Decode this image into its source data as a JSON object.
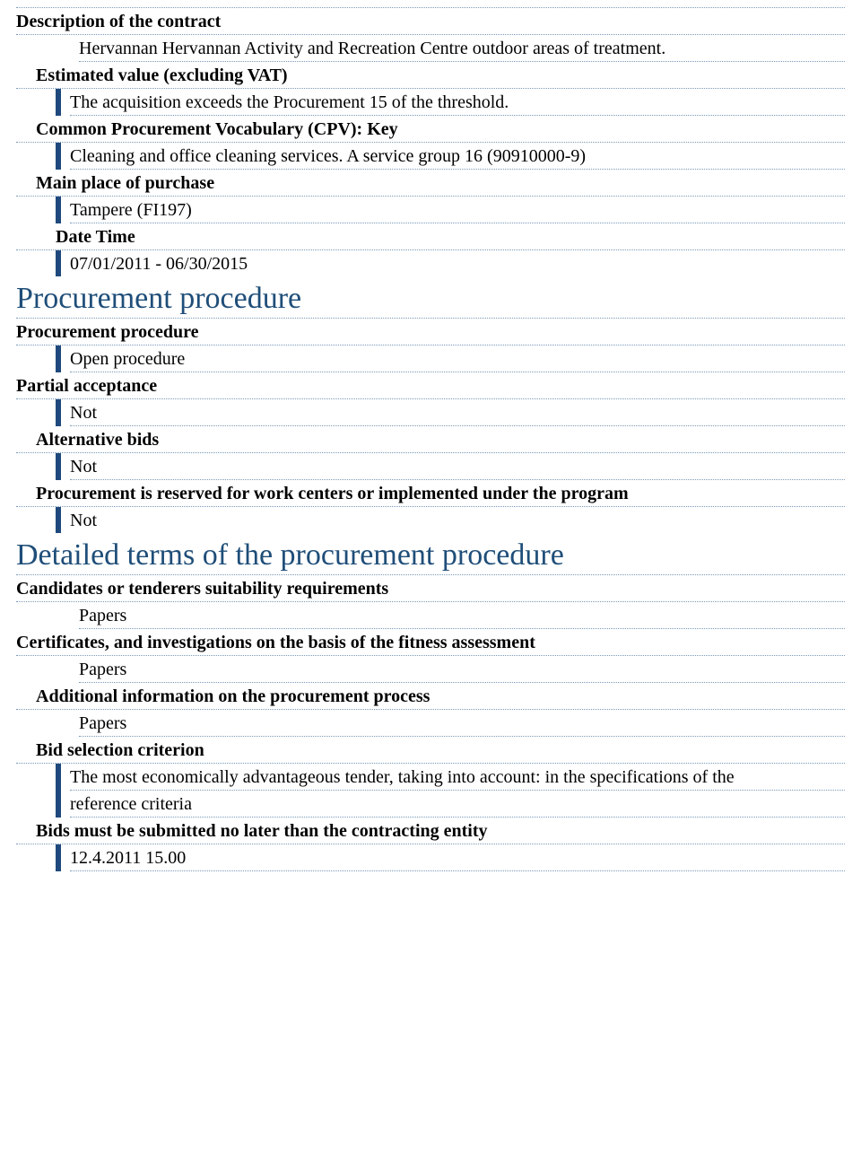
{
  "colors": {
    "accent": "#1f497d",
    "heading": "#1f4e79",
    "dotted": "#7a9ab8",
    "text": "#000000",
    "background": "#ffffff"
  },
  "typography": {
    "body_fontsize_pt": 15,
    "heading_fontsize_pt": 26,
    "font_family": "Times New Roman"
  },
  "sections": {
    "description": {
      "label": "Description of the contract",
      "value": "Hervannan Hervannan Activity and Recreation Centre outdoor areas of treatment."
    },
    "estimated_value": {
      "label": "Estimated value (excluding VAT)",
      "value": "The acquisition exceeds the Procurement 15 of the threshold."
    },
    "cpv": {
      "label": "Common Procurement Vocabulary (CPV): Key",
      "value": "Cleaning and office cleaning services. A service group 16 (90910000-9)"
    },
    "main_place": {
      "label": "Main place of purchase",
      "value": "Tampere (FI197)"
    },
    "date_time": {
      "label": "Date Time",
      "value": "07/01/2011 - 06/30/2015"
    }
  },
  "proc_heading": "Procurement procedure",
  "procurement": {
    "procedure": {
      "label": "Procurement procedure",
      "value": "Open procedure"
    },
    "partial": {
      "label": "Partial acceptance",
      "value": "Not"
    },
    "alt_bids": {
      "label": "Alternative bids",
      "value": "Not"
    },
    "reserved": {
      "label": "Procurement is reserved for work centers or implemented under the program",
      "value": "Not"
    }
  },
  "terms_heading": "Detailed terms of the procurement procedure",
  "terms": {
    "candidates": {
      "label": "Candidates or tenderers suitability requirements",
      "value": "Papers"
    },
    "certificates": {
      "label": "Certificates, and investigations on the basis of the fitness assessment",
      "value": "Papers"
    },
    "additional": {
      "label": "Additional information on the procurement process",
      "value": "Papers"
    },
    "selection": {
      "label": "Bid selection criterion",
      "line1": "The most economically advantageous tender, taking into account: in the specifications of the",
      "line2": "reference criteria"
    },
    "deadline": {
      "label": "Bids must be submitted no later than the contracting entity",
      "value": "12.4.2011 15.00"
    }
  }
}
